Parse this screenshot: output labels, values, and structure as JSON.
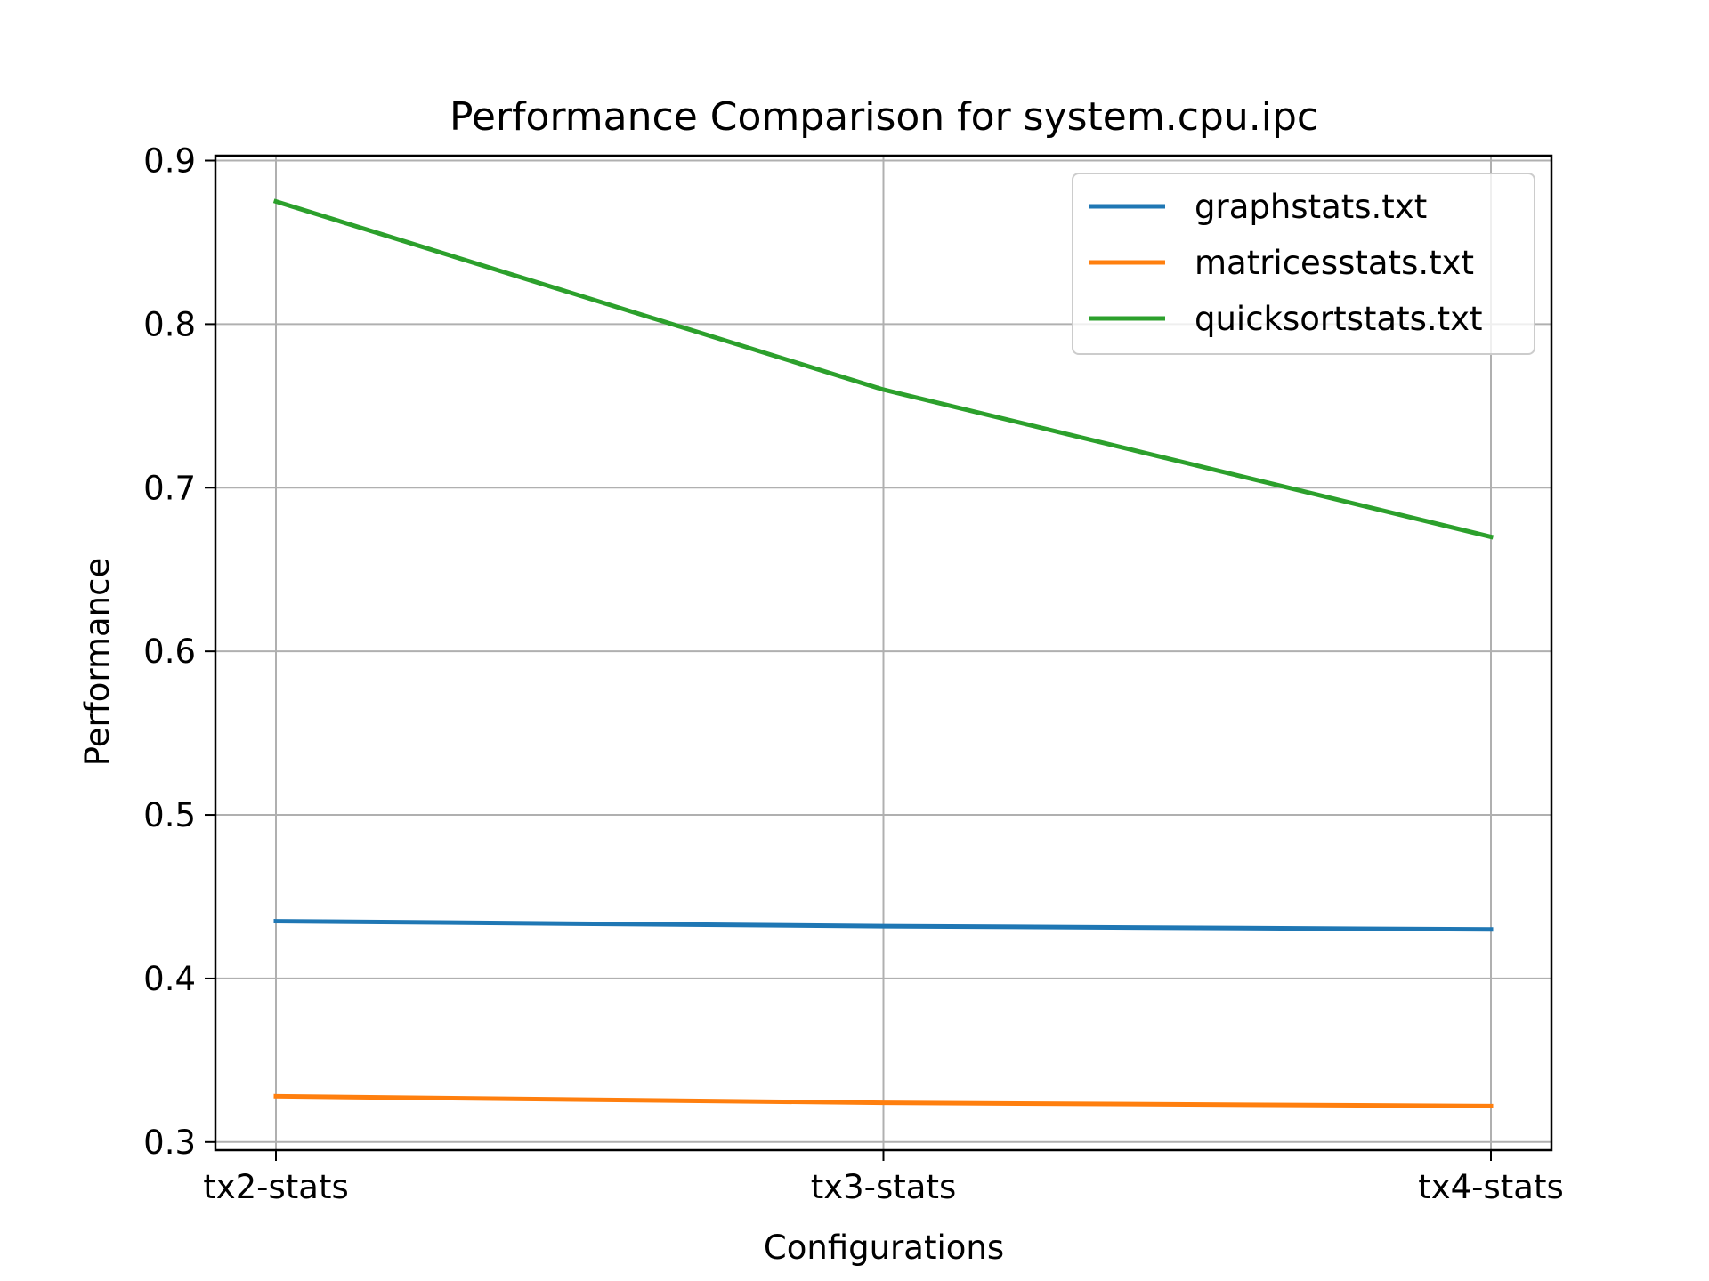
{
  "chart_data": {
    "type": "line",
    "title": "Performance Comparison for system.cpu.ipc",
    "xlabel": "Configurations",
    "ylabel": "Performance",
    "categories": [
      "tx2-stats",
      "tx3-stats",
      "tx4-stats"
    ],
    "ylim": [
      0.295,
      0.903
    ],
    "yticks": [
      0.3,
      0.4,
      0.5,
      0.6,
      0.7,
      0.8,
      0.9
    ],
    "ytick_labels": [
      "0.3",
      "0.4",
      "0.5",
      "0.6",
      "0.7",
      "0.8",
      "0.9"
    ],
    "grid": true,
    "legend_position": "top-right",
    "series": [
      {
        "name": "graphstats.txt",
        "color": "#1f77b4",
        "values": [
          0.435,
          0.432,
          0.43
        ]
      },
      {
        "name": "matricesstats.txt",
        "color": "#ff7f0e",
        "values": [
          0.328,
          0.324,
          0.322
        ]
      },
      {
        "name": "quicksortstats.txt",
        "color": "#2ca02c",
        "values": [
          0.875,
          0.76,
          0.67
        ]
      }
    ]
  }
}
